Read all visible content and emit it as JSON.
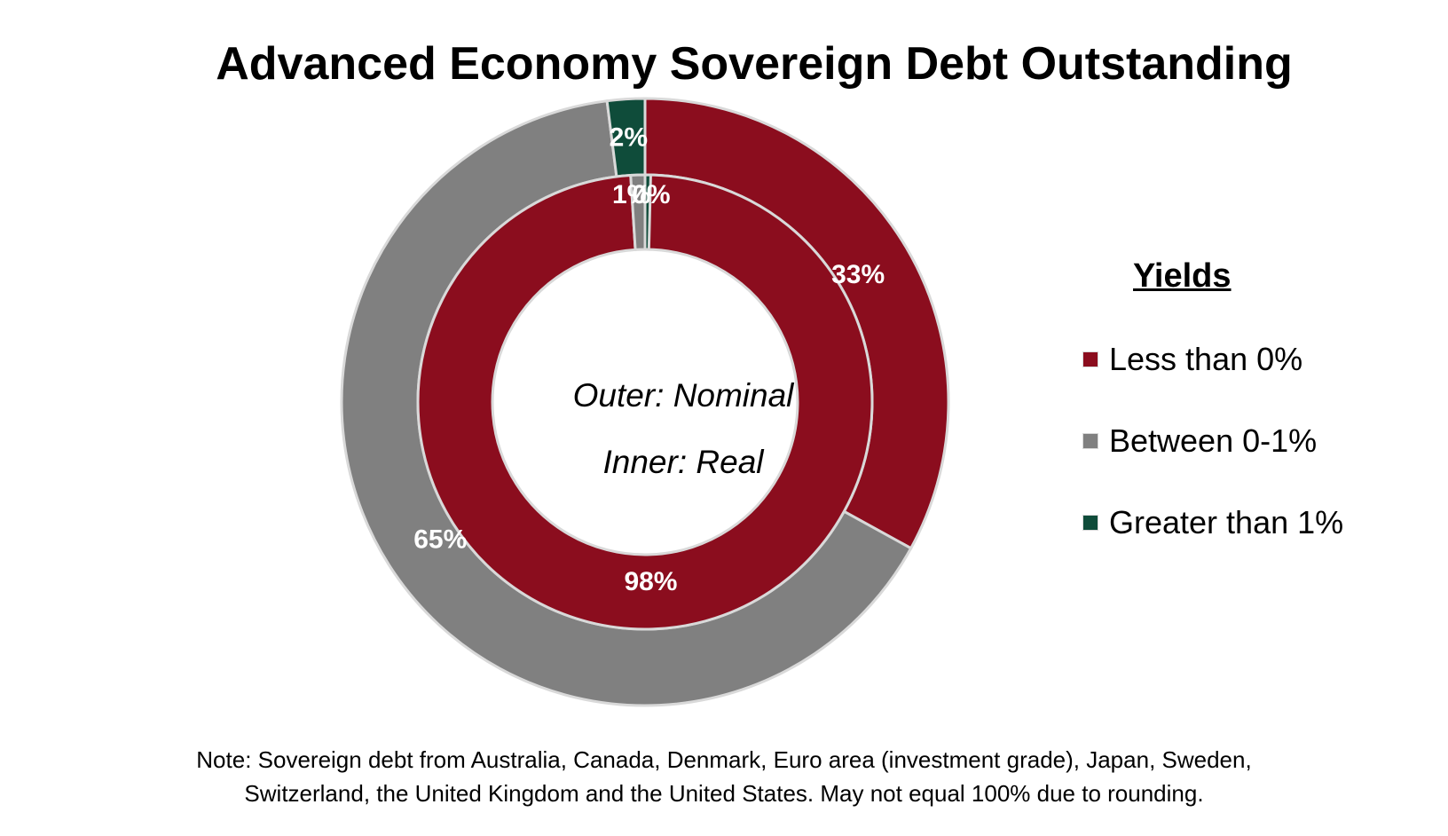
{
  "chart_data": {
    "type": "pie",
    "title": "Advanced Economy Sovereign Debt Outstanding",
    "legend_title": "Yields",
    "legend_position": "right",
    "categories": [
      "Less than 0%",
      "Between 0-1%",
      "Greater than 1%"
    ],
    "colors": [
      "#8B0D1E",
      "#808080",
      "#0F4C3A"
    ],
    "series": [
      {
        "values": [
          33,
          65,
          2
        ],
        "labels": [
          "33%",
          "65%",
          "2%"
        ]
      },
      {
        "values": [
          98,
          1,
          0
        ],
        "labels": [
          "98%",
          "1%",
          "0%"
        ]
      }
    ],
    "center_text": [
      "Outer: Nominal",
      "Inner: Real"
    ],
    "note": [
      "Note: Sovereign debt  from Australia, Canada, Denmark, Euro area (investment grade), Japan, Sweden,",
      "Switzerland, the United Kingdom and the United States. May not equal 100% due to rounding."
    ]
  }
}
